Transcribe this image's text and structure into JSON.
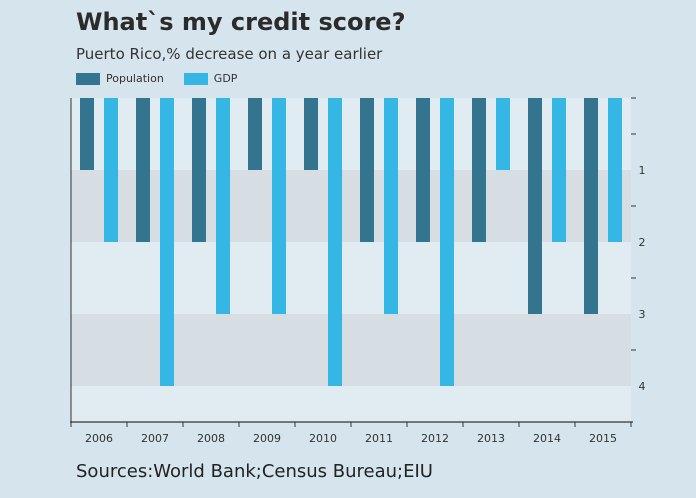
{
  "title": "What`s my credit score?",
  "subtitle": "Puerto Rico,% decrease on a year earlier",
  "source": "Sources:World Bank;Census Bureau;EIU",
  "legend": [
    {
      "label": "Population",
      "color": "#33748e"
    },
    {
      "label": "GDP",
      "color": "#35b7e6"
    }
  ],
  "chart_data": {
    "type": "bar",
    "orientation": "downward-vertical",
    "categories": [
      "2006",
      "2007",
      "2008",
      "2009",
      "2010",
      "2011",
      "2012",
      "2013",
      "2014",
      "2015"
    ],
    "series": [
      {
        "name": "Population",
        "color": "#33748e",
        "values": [
          1,
          2,
          2,
          1,
          1,
          2,
          2,
          2,
          3,
          3
        ]
      },
      {
        "name": "GDP",
        "color": "#35b7e6",
        "values": [
          2,
          4,
          3,
          3,
          4,
          3,
          4,
          1,
          2,
          2
        ]
      }
    ],
    "ylim": [
      0,
      4.5
    ],
    "yticks": [
      "1",
      "2",
      "3",
      "4"
    ],
    "y_axis_position": "right",
    "band_colors": [
      "#e1ebf2",
      "#d7dee3"
    ]
  }
}
